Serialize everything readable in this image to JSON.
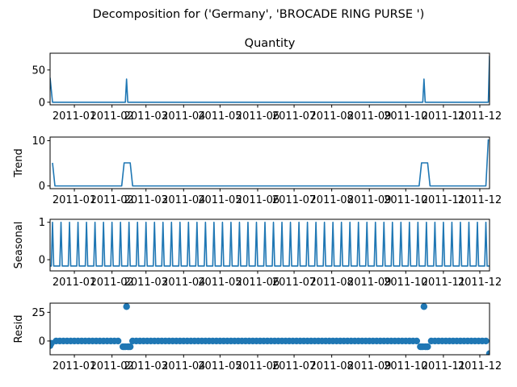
{
  "figure": {
    "suptitle": "Decomposition for ('Germany', 'BROCADE RING PURSE ')"
  },
  "colors": {
    "line": "#1f77b4",
    "marker": "#1f77b4",
    "axes": "#000000",
    "background": "#ffffff"
  },
  "chart_data": [
    {
      "type": "line",
      "title": "Quantity",
      "ylabel": "",
      "xlim": [
        "2010-12-12",
        "2011-12-09"
      ],
      "ylim": [
        -4,
        76
      ],
      "yticks": [
        0,
        50
      ],
      "xticks": [
        "2011-01",
        "2011-02",
        "2011-03",
        "2011-04",
        "2011-05",
        "2011-06",
        "2011-07",
        "2011-08",
        "2011-09",
        "2011-10",
        "2011-11",
        "2011-12"
      ],
      "series": [
        {
          "x": [
            "2010-12-12",
            "2010-12-14",
            "2011-02-12",
            "2011-02-13",
            "2011-02-14",
            "2011-10-15",
            "2011-10-16",
            "2011-10-17",
            "2011-12-08",
            "2011-12-09"
          ],
          "values": [
            38,
            0,
            0,
            36,
            0,
            0,
            36,
            0,
            0,
            72
          ]
        }
      ]
    },
    {
      "type": "line",
      "title": "",
      "ylabel": "Trend",
      "xlim": [
        "2010-12-12",
        "2011-12-09"
      ],
      "ylim": [
        -0.6,
        10.8
      ],
      "yticks": [
        0,
        10
      ],
      "xticks": [
        "2011-01",
        "2011-02",
        "2011-03",
        "2011-04",
        "2011-05",
        "2011-06",
        "2011-07",
        "2011-08",
        "2011-09",
        "2011-10",
        "2011-11",
        "2011-12"
      ],
      "series": [
        {
          "x": [
            "2010-12-14",
            "2010-12-16",
            "2011-02-09",
            "2011-02-11",
            "2011-02-16",
            "2011-02-18",
            "2011-10-12",
            "2011-10-14",
            "2011-10-19",
            "2011-10-21",
            "2011-12-06",
            "2011-12-08"
          ],
          "values": [
            5.1,
            0,
            0,
            5.1,
            5.1,
            0,
            0,
            5.1,
            5.1,
            0,
            0,
            10.3
          ]
        }
      ]
    },
    {
      "type": "line",
      "title": "",
      "ylabel": "Seasonal",
      "xlim": [
        "2010-12-12",
        "2011-12-09"
      ],
      "ylim": [
        -0.3,
        1.08
      ],
      "yticks": [
        0,
        1
      ],
      "xticks": [
        "2011-01",
        "2011-02",
        "2011-03",
        "2011-04",
        "2011-05",
        "2011-06",
        "2011-07",
        "2011-08",
        "2011-09",
        "2011-10",
        "2011-11",
        "2011-12"
      ],
      "period_days": 7,
      "first_peak": "2010-12-14",
      "peak_value": 1.0,
      "base_value": -0.17
    },
    {
      "type": "scatter",
      "title": "",
      "ylabel": "Resid",
      "xlim": [
        "2010-12-12",
        "2011-12-09"
      ],
      "ylim": [
        -12,
        33
      ],
      "yticks": [
        0,
        25
      ],
      "xticks": [
        "2011-01",
        "2011-02",
        "2011-03",
        "2011-04",
        "2011-05",
        "2011-06",
        "2011-07",
        "2011-08",
        "2011-09",
        "2011-10",
        "2011-11",
        "2011-12"
      ],
      "baseline_value": 0,
      "baseline_step_days": 3,
      "points": [
        {
          "x": "2010-12-12",
          "y": -4
        },
        {
          "x": "2010-12-13",
          "y": -2
        },
        {
          "x": "2011-02-10",
          "y": -5
        },
        {
          "x": "2011-02-11",
          "y": -5
        },
        {
          "x": "2011-02-12",
          "y": -5
        },
        {
          "x": "2011-02-13",
          "y": 30
        },
        {
          "x": "2011-02-14",
          "y": -5
        },
        {
          "x": "2011-02-15",
          "y": -5
        },
        {
          "x": "2011-02-16",
          "y": -5
        },
        {
          "x": "2011-10-13",
          "y": -5
        },
        {
          "x": "2011-10-14",
          "y": -5
        },
        {
          "x": "2011-10-15",
          "y": -5
        },
        {
          "x": "2011-10-16",
          "y": 30
        },
        {
          "x": "2011-10-17",
          "y": -5
        },
        {
          "x": "2011-10-18",
          "y": -5
        },
        {
          "x": "2011-10-19",
          "y": -5
        },
        {
          "x": "2011-12-09",
          "y": -11
        }
      ]
    }
  ]
}
